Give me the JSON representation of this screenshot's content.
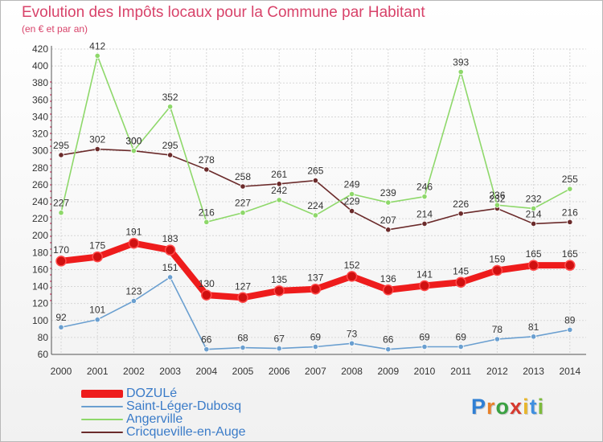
{
  "title": "Evolution des Impôts locaux pour la Commune par Habitant",
  "subtitle": "(en € et par an)",
  "logo": {
    "text": "Proxiti",
    "letters": [
      "P",
      "r",
      "o",
      "x",
      "i",
      "t",
      "i"
    ],
    "colors": [
      "#2f7fd4",
      "#e8812a",
      "#3aa142",
      "#d63a2f",
      "#e8b62a",
      "#3f8fe0",
      "#7dbb3d"
    ]
  },
  "chart_data": {
    "type": "line",
    "title": "Evolution des Impôts locaux pour la Commune par Habitant",
    "subtitle": "(en € et par an)",
    "xlabel": "",
    "ylabel": "",
    "ylim": [
      60,
      420
    ],
    "yticks": [
      60,
      80,
      100,
      120,
      140,
      160,
      180,
      200,
      220,
      240,
      260,
      280,
      300,
      320,
      340,
      360,
      380,
      400,
      420
    ],
    "x": [
      "2000",
      "2001",
      "2002",
      "2003",
      "2004",
      "2005",
      "2006",
      "2007",
      "2008",
      "2009",
      "2010",
      "2011",
      "2012",
      "2013",
      "2014"
    ],
    "grid": true,
    "legend_position": "bottom-left",
    "series": [
      {
        "name": "Cricqueville-en-Auge",
        "color": "#6b2b2b",
        "values": [
          295,
          302,
          300,
          295,
          278,
          258,
          261,
          265,
          229,
          207,
          214,
          226,
          232,
          214,
          216
        ]
      },
      {
        "name": "Angerville",
        "color": "#8ed86a",
        "values": [
          227,
          412,
          300,
          352,
          216,
          227,
          242,
          224,
          249,
          239,
          246,
          393,
          236,
          232,
          255
        ]
      },
      {
        "name": "Saint-Léger-Dubosq",
        "color": "#6a9fd0",
        "values": [
          92,
          101,
          123,
          151,
          66,
          68,
          67,
          69,
          73,
          66,
          69,
          69,
          78,
          81,
          89
        ]
      },
      {
        "name": "DOZULé",
        "color": "#ee1c1c",
        "values": [
          170,
          175,
          191,
          183,
          130,
          127,
          135,
          137,
          152,
          136,
          141,
          145,
          159,
          165,
          165
        ]
      }
    ],
    "legend": [
      "DOZULé",
      "Saint-Léger-Dubosq",
      "Angerville",
      "Cricqueville-en-Auge"
    ]
  }
}
